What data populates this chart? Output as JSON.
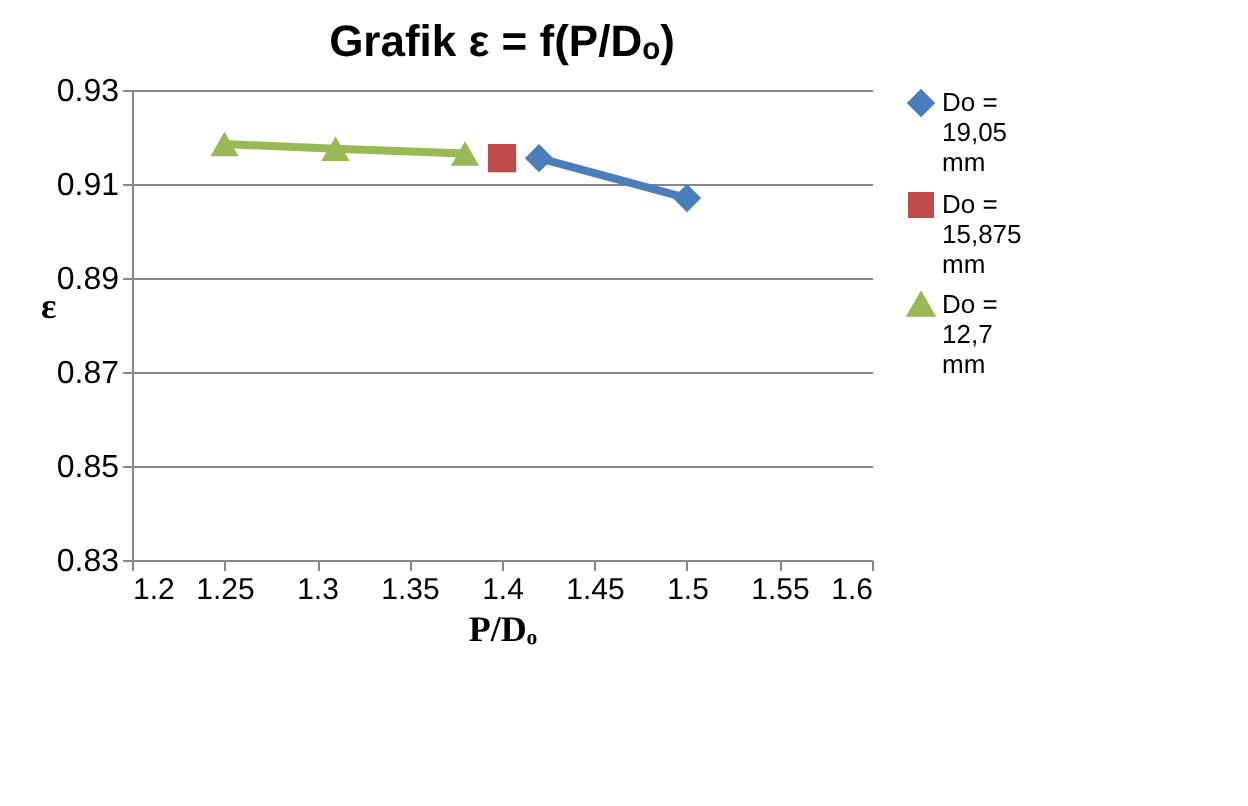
{
  "chart_data": {
    "type": "line",
    "title": "Grafik ε = f(P/Dₒ)",
    "xlabel": "P/Dₒ",
    "ylabel": "ε",
    "xlim": [
      1.2,
      1.6
    ],
    "xticks": [
      1.2,
      1.25,
      1.3,
      1.35,
      1.4,
      1.45,
      1.5,
      1.55,
      1.6
    ],
    "ylim": [
      0.83,
      0.93
    ],
    "yticks": [
      0.83,
      0.85,
      0.87,
      0.89,
      0.91,
      0.93
    ],
    "grid": "y",
    "legend": "right",
    "series": [
      {
        "name": "Do = 19,05 mm",
        "color": "#4a7ebb",
        "marker": "diamond",
        "x": [
          1.42,
          1.5
        ],
        "values": [
          0.9155,
          0.907
        ]
      },
      {
        "name": "Do = 15,875 mm",
        "color": "#be4b48",
        "marker": "square",
        "x": [
          1.4
        ],
        "values": [
          0.9155
        ]
      },
      {
        "name": "Do = 12,7 mm",
        "color": "#98b954",
        "marker": "triangle",
        "x": [
          1.25,
          1.31,
          1.38
        ],
        "values": [
          0.9185,
          0.9175,
          0.9165
        ]
      }
    ]
  }
}
